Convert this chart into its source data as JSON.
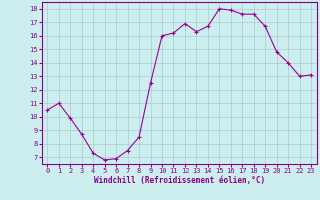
{
  "x": [
    0,
    1,
    2,
    3,
    4,
    5,
    6,
    7,
    8,
    9,
    10,
    11,
    12,
    13,
    14,
    15,
    16,
    17,
    18,
    19,
    20,
    21,
    22,
    23
  ],
  "y": [
    10.5,
    11.0,
    9.9,
    8.7,
    7.3,
    6.8,
    6.9,
    7.5,
    8.5,
    12.5,
    16.0,
    16.2,
    16.9,
    16.3,
    16.7,
    18.0,
    17.9,
    17.6,
    17.6,
    16.7,
    14.8,
    14.0,
    13.0,
    13.1
  ],
  "line_color": "#990099",
  "marker": "+",
  "marker_size": 3,
  "marker_lw": 0.8,
  "line_width": 0.8,
  "bg_color": "#cceeee",
  "grid_color": "#aacccc",
  "xlabel": "Windchill (Refroidissement éolien,°C)",
  "yticks": [
    7,
    8,
    9,
    10,
    11,
    12,
    13,
    14,
    15,
    16,
    17,
    18
  ],
  "xticks": [
    0,
    1,
    2,
    3,
    4,
    5,
    6,
    7,
    8,
    9,
    10,
    11,
    12,
    13,
    14,
    15,
    16,
    17,
    18,
    19,
    20,
    21,
    22,
    23
  ],
  "ylim": [
    6.5,
    18.5
  ],
  "xlim": [
    -0.5,
    23.5
  ],
  "axis_label_color": "#880088",
  "tick_color": "#880088",
  "spine_color": "#880088",
  "tick_fontsize": 5.0,
  "xlabel_fontsize": 5.5
}
